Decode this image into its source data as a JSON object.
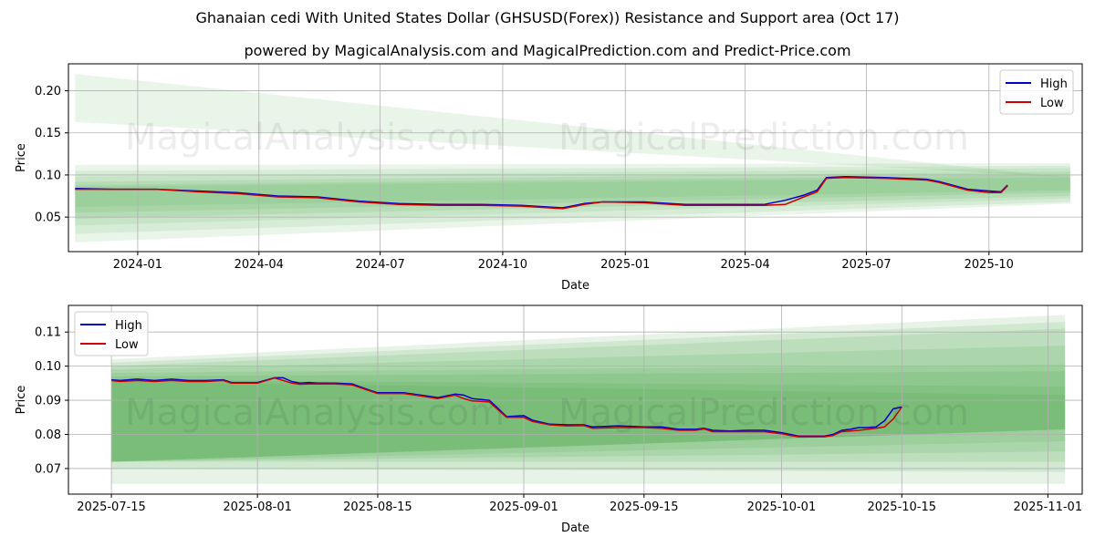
{
  "title": "Ghanaian cedi With United States Dollar (GHSUSD(Forex)) Resistance and Support area (Oct 17)",
  "subtitle": "powered by MagicalAnalysis.com and MagicalPrediction.com and Predict-Price.com",
  "watermarks": [
    "MagicalAnalysis.com",
    "MagicalPrediction.com"
  ],
  "chart_data": [
    {
      "type": "line",
      "xlabel": "Date",
      "ylabel": "Price",
      "ylim": [
        0.009,
        0.232
      ],
      "grid": true,
      "legend_position": "top-right",
      "x_ticks": [
        {
          "label": "2024-01",
          "date": "2024-01-01"
        },
        {
          "label": "2024-04",
          "date": "2024-04-01"
        },
        {
          "label": "2024-07",
          "date": "2024-07-01"
        },
        {
          "label": "2024-10",
          "date": "2024-10-01"
        },
        {
          "label": "2025-01",
          "date": "2025-01-01"
        },
        {
          "label": "2025-04",
          "date": "2025-04-01"
        },
        {
          "label": "2025-07",
          "date": "2025-07-01"
        },
        {
          "label": "2025-10",
          "date": "2025-10-01"
        }
      ],
      "y_ticks": [
        0.05,
        0.1,
        0.15,
        0.2
      ],
      "y_tick_labels": [
        "0.05",
        "0.10",
        "0.15",
        "0.20"
      ],
      "x_range": [
        "2023-11-10",
        "2025-12-10"
      ],
      "series": [
        {
          "name": "High",
          "color": "#0000cc",
          "dates": [
            "2023-11-15",
            "2023-12-15",
            "2024-01-15",
            "2024-02-15",
            "2024-03-15",
            "2024-04-15",
            "2024-05-15",
            "2024-06-15",
            "2024-07-15",
            "2024-08-15",
            "2024-09-15",
            "2024-10-15",
            "2024-11-15",
            "2024-12-01",
            "2024-12-15",
            "2025-01-15",
            "2025-02-15",
            "2025-03-15",
            "2025-04-15",
            "2025-05-01",
            "2025-05-15",
            "2025-05-25",
            "2025-06-01",
            "2025-06-15",
            "2025-07-15",
            "2025-08-15",
            "2025-08-25",
            "2025-09-15",
            "2025-10-01",
            "2025-10-10",
            "2025-10-15"
          ],
          "values": [
            0.084,
            0.083,
            0.083,
            0.081,
            0.079,
            0.075,
            0.074,
            0.069,
            0.066,
            0.065,
            0.065,
            0.064,
            0.061,
            0.066,
            0.068,
            0.068,
            0.065,
            0.065,
            0.065,
            0.07,
            0.076,
            0.082,
            0.097,
            0.098,
            0.097,
            0.095,
            0.092,
            0.083,
            0.081,
            0.08,
            0.088
          ]
        },
        {
          "name": "Low",
          "color": "#cc0000",
          "dates": [
            "2023-11-15",
            "2023-12-15",
            "2024-01-15",
            "2024-02-15",
            "2024-03-15",
            "2024-04-15",
            "2024-05-15",
            "2024-06-15",
            "2024-07-15",
            "2024-08-15",
            "2024-09-15",
            "2024-10-15",
            "2024-11-15",
            "2024-12-01",
            "2024-12-15",
            "2025-01-15",
            "2025-02-15",
            "2025-03-15",
            "2025-04-15",
            "2025-05-01",
            "2025-05-15",
            "2025-05-25",
            "2025-06-01",
            "2025-06-15",
            "2025-07-15",
            "2025-08-15",
            "2025-08-25",
            "2025-09-15",
            "2025-10-01",
            "2025-10-10",
            "2025-10-15"
          ],
          "values": [
            0.083,
            0.083,
            0.083,
            0.08,
            0.078,
            0.074,
            0.073,
            0.068,
            0.065,
            0.064,
            0.064,
            0.063,
            0.06,
            0.065,
            0.068,
            0.067,
            0.064,
            0.064,
            0.064,
            0.065,
            0.074,
            0.08,
            0.096,
            0.097,
            0.096,
            0.094,
            0.091,
            0.082,
            0.079,
            0.079,
            0.087
          ]
        }
      ],
      "bands": [
        {
          "start": "2023-11-15",
          "end": "2025-12-01",
          "from": [
            0.163,
            0.22
          ],
          "to": [
            0.097,
            0.097
          ],
          "opacity": 0.1
        },
        {
          "start": "2023-11-15",
          "end": "2025-12-01",
          "from": [
            0.02,
            0.112
          ],
          "to": [
            0.066,
            0.114
          ],
          "opacity": 0.1
        },
        {
          "start": "2023-11-15",
          "end": "2025-12-01",
          "from": [
            0.03,
            0.105
          ],
          "to": [
            0.068,
            0.111
          ],
          "opacity": 0.1
        },
        {
          "start": "2023-11-15",
          "end": "2025-12-01",
          "from": [
            0.04,
            0.098
          ],
          "to": [
            0.072,
            0.108
          ],
          "opacity": 0.1
        },
        {
          "start": "2023-11-15",
          "end": "2025-12-01",
          "from": [
            0.048,
            0.092
          ],
          "to": [
            0.075,
            0.104
          ],
          "opacity": 0.1
        },
        {
          "start": "2023-11-15",
          "end": "2025-12-01",
          "from": [
            0.055,
            0.088
          ],
          "to": [
            0.079,
            0.1
          ],
          "opacity": 0.1
        },
        {
          "start": "2023-11-15",
          "end": "2025-12-01",
          "from": [
            0.062,
            0.086
          ],
          "to": [
            0.082,
            0.097
          ],
          "opacity": 0.1
        }
      ]
    },
    {
      "type": "line",
      "xlabel": "Date",
      "ylabel": "Price",
      "ylim": [
        0.0625,
        0.1178
      ],
      "grid": true,
      "legend_position": "top-left",
      "x_ticks": [
        {
          "label": "2025-07-15",
          "date": "2025-07-15"
        },
        {
          "label": "2025-08-01",
          "date": "2025-08-01"
        },
        {
          "label": "2025-08-15",
          "date": "2025-08-15"
        },
        {
          "label": "2025-09-01",
          "date": "2025-09-01"
        },
        {
          "label": "2025-09-15",
          "date": "2025-09-15"
        },
        {
          "label": "2025-10-01",
          "date": "2025-10-01"
        },
        {
          "label": "2025-10-15",
          "date": "2025-10-15"
        },
        {
          "label": "2025-11-01",
          "date": "2025-11-01"
        }
      ],
      "y_ticks": [
        0.07,
        0.08,
        0.09,
        0.1,
        0.11
      ],
      "y_tick_labels": [
        "0.07",
        "0.08",
        "0.09",
        "0.10",
        "0.11"
      ],
      "x_range": [
        "2025-07-10",
        "2025-11-05"
      ],
      "series": [
        {
          "name": "High",
          "color": "#0000cc",
          "dates": [
            "2025-07-15",
            "2025-07-16",
            "2025-07-18",
            "2025-07-20",
            "2025-07-22",
            "2025-07-24",
            "2025-07-26",
            "2025-07-28",
            "2025-07-29",
            "2025-08-01",
            "2025-08-03",
            "2025-08-04",
            "2025-08-05",
            "2025-08-06",
            "2025-08-07",
            "2025-08-08",
            "2025-08-10",
            "2025-08-12",
            "2025-08-14",
            "2025-08-15",
            "2025-08-18",
            "2025-08-20",
            "2025-08-22",
            "2025-08-24",
            "2025-08-25",
            "2025-08-26",
            "2025-08-28",
            "2025-08-30",
            "2025-09-01",
            "2025-09-02",
            "2025-09-04",
            "2025-09-06",
            "2025-09-08",
            "2025-09-09",
            "2025-09-12",
            "2025-09-15",
            "2025-09-17",
            "2025-09-19",
            "2025-09-21",
            "2025-09-22",
            "2025-09-23",
            "2025-09-25",
            "2025-09-27",
            "2025-09-29",
            "2025-10-01",
            "2025-10-02",
            "2025-10-03",
            "2025-10-06",
            "2025-10-07",
            "2025-10-08",
            "2025-10-09",
            "2025-10-10",
            "2025-10-11",
            "2025-10-12",
            "2025-10-13",
            "2025-10-14",
            "2025-10-15"
          ],
          "values": [
            0.096,
            0.0958,
            0.0962,
            0.0958,
            0.0962,
            0.0958,
            0.0958,
            0.096,
            0.0952,
            0.0952,
            0.0966,
            0.0966,
            0.0955,
            0.095,
            0.0952,
            0.095,
            0.095,
            0.0948,
            0.093,
            0.0922,
            0.0922,
            0.0915,
            0.0908,
            0.0918,
            0.0915,
            0.0905,
            0.09,
            0.0852,
            0.0855,
            0.0842,
            0.083,
            0.0828,
            0.0828,
            0.0822,
            0.0825,
            0.0822,
            0.0822,
            0.0815,
            0.0815,
            0.0818,
            0.0812,
            0.081,
            0.0812,
            0.0812,
            0.0805,
            0.08,
            0.0795,
            0.0795,
            0.08,
            0.0812,
            0.0815,
            0.082,
            0.082,
            0.0822,
            0.084,
            0.0875,
            0.088
          ]
        },
        {
          "name": "Low",
          "color": "#cc0000",
          "dates": [
            "2025-07-15",
            "2025-07-16",
            "2025-07-18",
            "2025-07-20",
            "2025-07-22",
            "2025-07-24",
            "2025-07-26",
            "2025-07-28",
            "2025-07-29",
            "2025-08-01",
            "2025-08-03",
            "2025-08-04",
            "2025-08-05",
            "2025-08-06",
            "2025-08-07",
            "2025-08-08",
            "2025-08-10",
            "2025-08-12",
            "2025-08-14",
            "2025-08-15",
            "2025-08-18",
            "2025-08-20",
            "2025-08-22",
            "2025-08-24",
            "2025-08-25",
            "2025-08-26",
            "2025-08-28",
            "2025-08-30",
            "2025-09-01",
            "2025-09-02",
            "2025-09-04",
            "2025-09-06",
            "2025-09-08",
            "2025-09-09",
            "2025-09-12",
            "2025-09-15",
            "2025-09-17",
            "2025-09-19",
            "2025-09-21",
            "2025-09-22",
            "2025-09-23",
            "2025-09-25",
            "2025-09-27",
            "2025-09-29",
            "2025-10-01",
            "2025-10-02",
            "2025-10-03",
            "2025-10-06",
            "2025-10-07",
            "2025-10-08",
            "2025-10-09",
            "2025-10-10",
            "2025-10-11",
            "2025-10-12",
            "2025-10-13",
            "2025-10-14",
            "2025-10-15"
          ],
          "values": [
            0.0958,
            0.0955,
            0.0958,
            0.0955,
            0.0958,
            0.0955,
            0.0955,
            0.0958,
            0.095,
            0.095,
            0.0965,
            0.0958,
            0.095,
            0.0947,
            0.0948,
            0.0948,
            0.0948,
            0.0945,
            0.0928,
            0.092,
            0.092,
            0.0913,
            0.0905,
            0.0915,
            0.0905,
            0.0898,
            0.0895,
            0.085,
            0.085,
            0.0838,
            0.0828,
            0.0825,
            0.0826,
            0.0818,
            0.082,
            0.082,
            0.0818,
            0.0812,
            0.0812,
            0.0816,
            0.0808,
            0.0808,
            0.0808,
            0.0808,
            0.0802,
            0.0797,
            0.0793,
            0.0793,
            0.0797,
            0.0808,
            0.081,
            0.0812,
            0.0815,
            0.0818,
            0.0822,
            0.0845,
            0.088
          ]
        }
      ],
      "bands": [
        {
          "start": "2025-07-15",
          "end": "2025-11-03",
          "from": [
            0.0655,
            0.102
          ],
          "to": [
            0.0655,
            0.115
          ],
          "opacity": 0.12
        },
        {
          "start": "2025-07-15",
          "end": "2025-11-03",
          "from": [
            0.07,
            0.101
          ],
          "to": [
            0.069,
            0.113
          ],
          "opacity": 0.12
        },
        {
          "start": "2025-07-15",
          "end": "2025-11-03",
          "from": [
            0.072,
            0.1
          ],
          "to": [
            0.072,
            0.111
          ],
          "opacity": 0.12
        },
        {
          "start": "2025-07-15",
          "end": "2025-11-03",
          "from": [
            0.072,
            0.099
          ],
          "to": [
            0.075,
            0.106
          ],
          "opacity": 0.12
        },
        {
          "start": "2025-07-15",
          "end": "2025-11-03",
          "from": [
            0.072,
            0.098
          ],
          "to": [
            0.078,
            0.1005
          ],
          "opacity": 0.12
        },
        {
          "start": "2025-07-15",
          "end": "2025-11-03",
          "from": [
            0.072,
            0.097
          ],
          "to": [
            0.0815,
            0.0985
          ],
          "opacity": 0.12
        },
        {
          "start": "2025-07-15",
          "end": "2025-11-03",
          "from": [
            0.072,
            0.096
          ],
          "to": [
            0.0815,
            0.094
          ],
          "opacity": 0.12
        },
        {
          "start": "2025-07-15",
          "end": "2025-11-03",
          "from": [
            0.072,
            0.0955
          ],
          "to": [
            0.0815,
            0.0915
          ],
          "opacity": 0.12
        }
      ]
    }
  ]
}
